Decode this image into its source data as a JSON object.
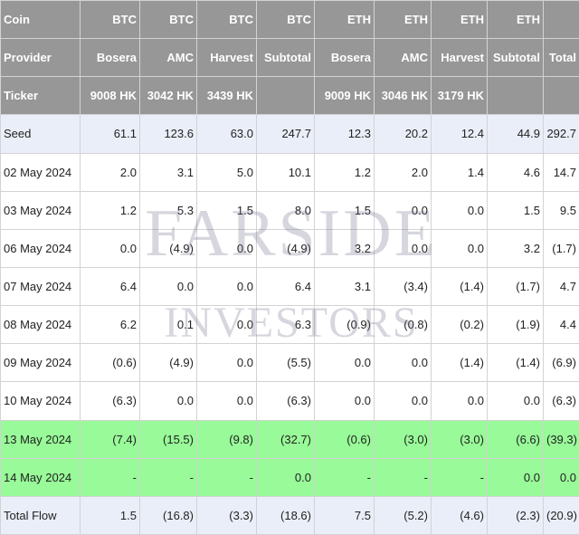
{
  "header_rows": [
    {
      "label": "Coin",
      "cells": [
        "BTC",
        "BTC",
        "BTC",
        "BTC",
        "ETH",
        "ETH",
        "ETH",
        "ETH",
        ""
      ]
    },
    {
      "label": "Provider",
      "cells": [
        "Bosera",
        "AMC",
        "Harvest",
        "Subtotal",
        "Bosera",
        "AMC",
        "Harvest",
        "Subtotal",
        "Total"
      ]
    },
    {
      "label": "Ticker",
      "cells": [
        "9008 HK",
        "3042 HK",
        "3439 HK",
        "",
        "9009 HK",
        "3046 HK",
        "3179 HK",
        "",
        ""
      ]
    }
  ],
  "rows": [
    {
      "label": "Seed",
      "style": "seed",
      "cells": [
        "61.1",
        "123.6",
        "63.0",
        "247.7",
        "12.3",
        "20.2",
        "12.4",
        "44.9",
        "292.7"
      ]
    },
    {
      "label": "02 May 2024",
      "style": "plain",
      "cells": [
        "2.0",
        "3.1",
        "5.0",
        "10.1",
        "1.2",
        "2.0",
        "1.4",
        "4.6",
        "14.7"
      ]
    },
    {
      "label": "03 May 2024",
      "style": "plain",
      "cells": [
        "1.2",
        "5.3",
        "1.5",
        "8.0",
        "1.5",
        "0.0",
        "0.0",
        "1.5",
        "9.5"
      ]
    },
    {
      "label": "06 May 2024",
      "style": "plain",
      "cells": [
        "0.0",
        "(4.9)",
        "0.0",
        "(4.9)",
        "3.2",
        "0.0",
        "0.0",
        "3.2",
        "(1.7)"
      ]
    },
    {
      "label": "07 May 2024",
      "style": "plain",
      "cells": [
        "6.4",
        "0.0",
        "0.0",
        "6.4",
        "3.1",
        "(3.4)",
        "(1.4)",
        "(1.7)",
        "4.7"
      ]
    },
    {
      "label": "08 May 2024",
      "style": "plain",
      "cells": [
        "6.2",
        "0.1",
        "0.0",
        "6.3",
        "(0.9)",
        "(0.8)",
        "(0.2)",
        "(1.9)",
        "4.4"
      ]
    },
    {
      "label": "09 May 2024",
      "style": "plain",
      "cells": [
        "(0.6)",
        "(4.9)",
        "0.0",
        "(5.5)",
        "0.0",
        "0.0",
        "(1.4)",
        "(1.4)",
        "(6.9)"
      ]
    },
    {
      "label": "10 May 2024",
      "style": "plain",
      "cells": [
        "(6.3)",
        "0.0",
        "0.0",
        "(6.3)",
        "0.0",
        "0.0",
        "0.0",
        "0.0",
        "(6.3)"
      ]
    },
    {
      "label": "13 May 2024",
      "style": "hl",
      "cells": [
        "(7.4)",
        "(15.5)",
        "(9.8)",
        "(32.7)",
        "(0.6)",
        "(3.0)",
        "(3.0)",
        "(6.6)",
        "(39.3)"
      ]
    },
    {
      "label": "14 May 2024",
      "style": "hl",
      "cells": [
        "-",
        "-",
        "-",
        "0.0",
        "-",
        "-",
        "-",
        "0.0",
        "0.0"
      ]
    },
    {
      "label": "Total Flow",
      "style": "total",
      "cells": [
        "1.5",
        "(16.8)",
        "(3.3)",
        "(18.6)",
        "7.5",
        "(5.2)",
        "(4.6)",
        "(2.3)",
        "(20.9)"
      ]
    }
  ],
  "watermark": {
    "line1": "FARSIDE",
    "line2": "INVESTORS"
  },
  "colors": {
    "header_bg": "#979797",
    "negative": "#e01515",
    "highlight": "#98fa98",
    "seed_bg": "#eaeef8"
  }
}
